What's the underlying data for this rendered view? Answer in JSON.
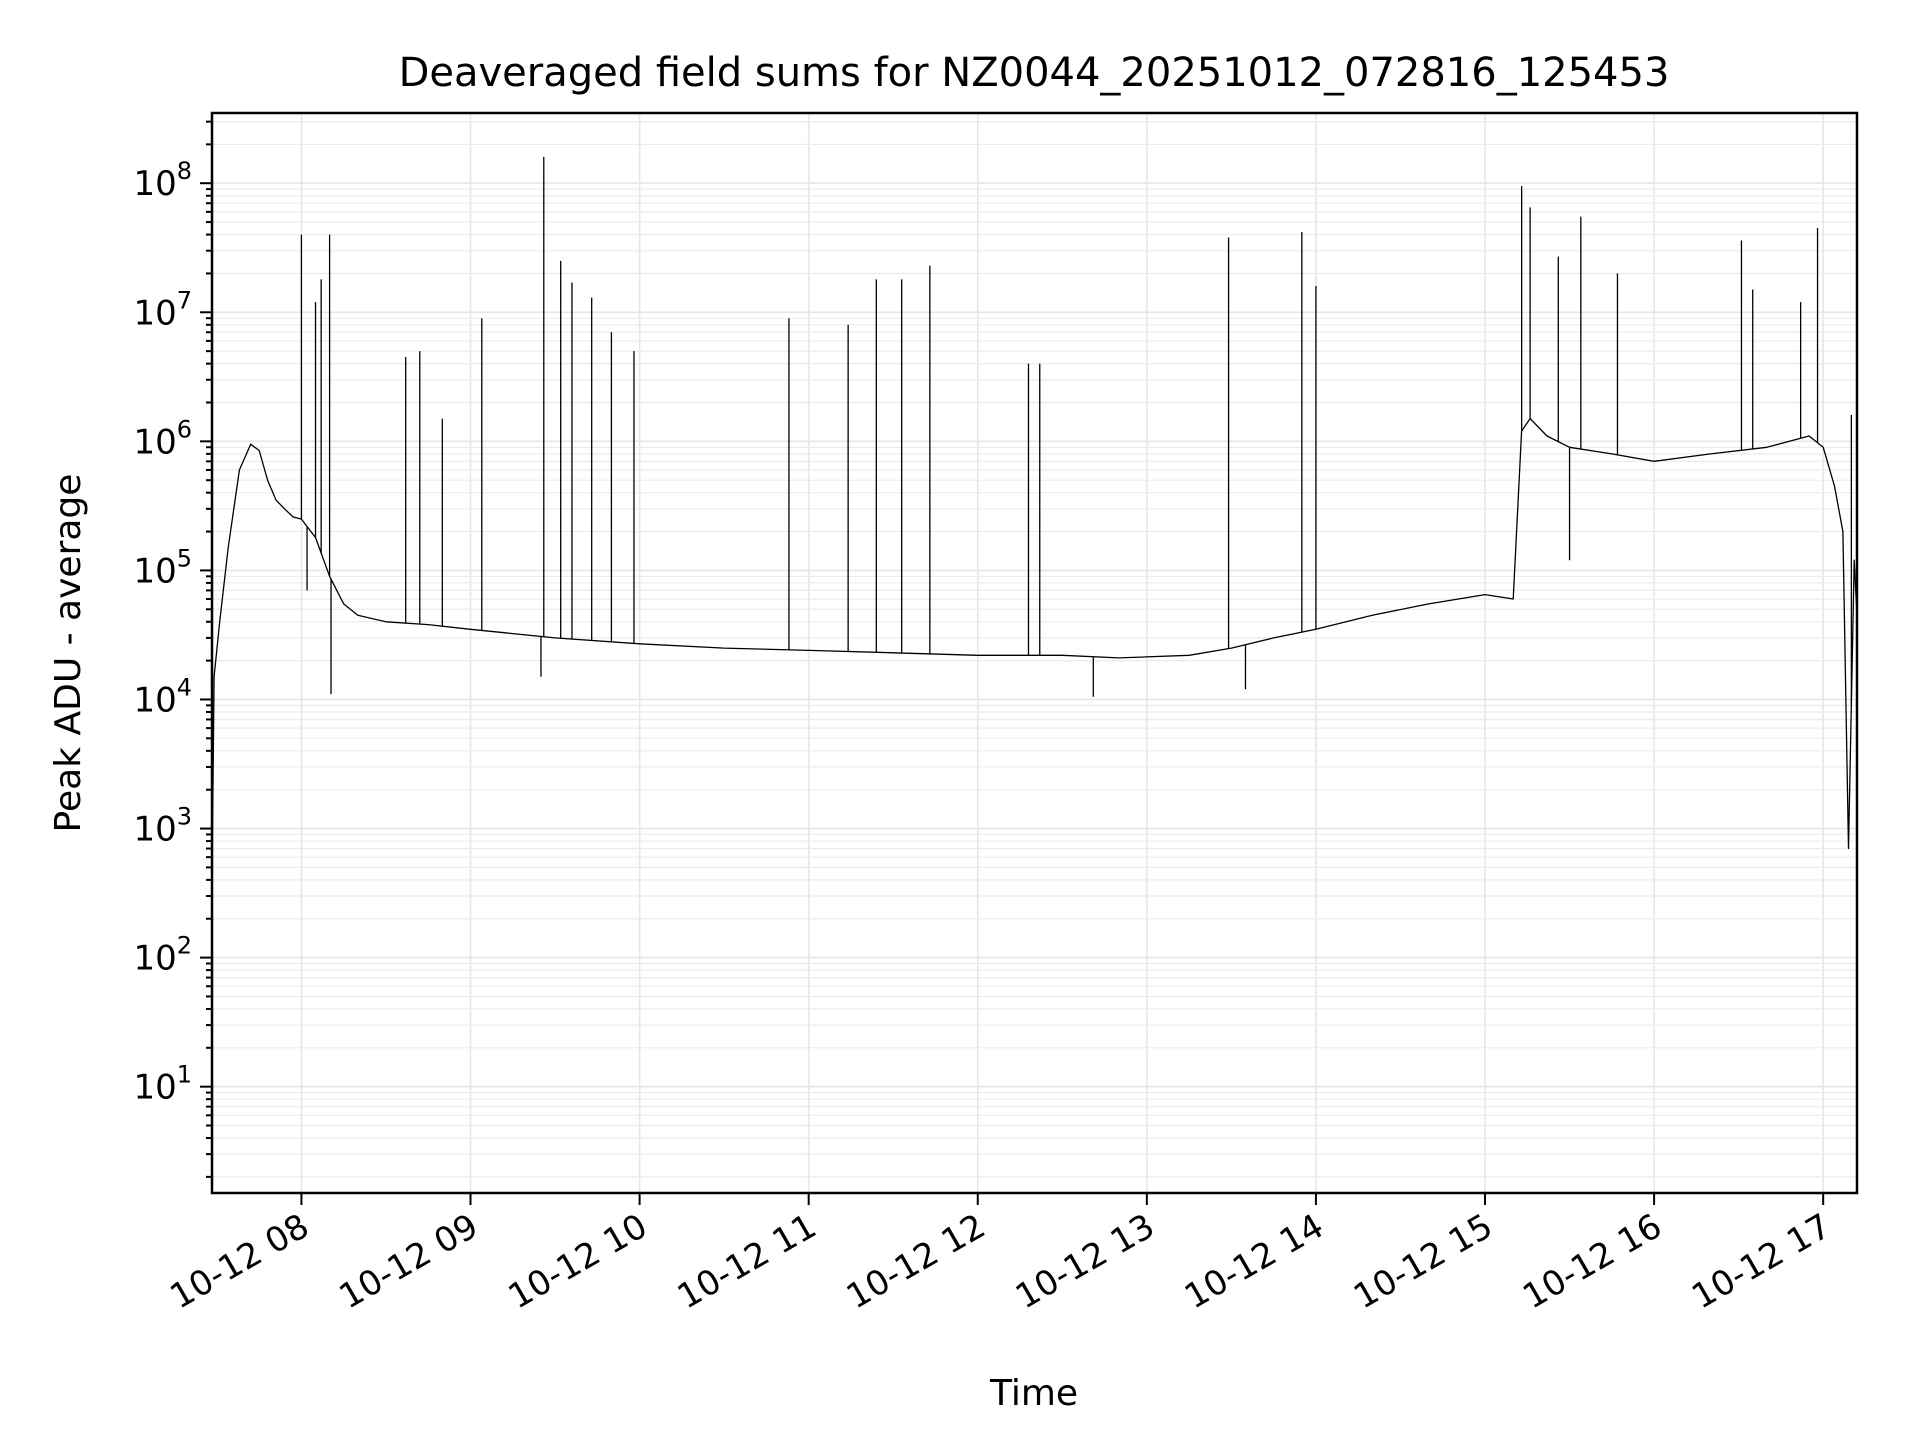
{
  "chart_data": {
    "type": "line",
    "title": "Deaveraged field sums for NZ0044_20251012_072816_125453",
    "xlabel": "Time",
    "ylabel": "Peak ADU - average",
    "yscale": "log",
    "grid": true,
    "xlim": [
      "2025-10-12 07:28:16",
      "2025-10-12 17:12:00"
    ],
    "ylim": [
      1.5,
      350000000
    ],
    "x_ticks": [
      {
        "value": "2025-10-12 08:00",
        "label": "10-12 08"
      },
      {
        "value": "2025-10-12 09:00",
        "label": "10-12 09"
      },
      {
        "value": "2025-10-12 10:00",
        "label": "10-12 10"
      },
      {
        "value": "2025-10-12 11:00",
        "label": "10-12 11"
      },
      {
        "value": "2025-10-12 12:00",
        "label": "10-12 12"
      },
      {
        "value": "2025-10-12 13:00",
        "label": "10-12 13"
      },
      {
        "value": "2025-10-12 14:00",
        "label": "10-12 14"
      },
      {
        "value": "2025-10-12 15:00",
        "label": "10-12 15"
      },
      {
        "value": "2025-10-12 16:00",
        "label": "10-12 16"
      },
      {
        "value": "2025-10-12 17:00",
        "label": "10-12 17"
      }
    ],
    "y_ticks": [
      {
        "value": 10,
        "base": "10",
        "exp": "1"
      },
      {
        "value": 100,
        "base": "10",
        "exp": "2"
      },
      {
        "value": 1000,
        "base": "10",
        "exp": "3"
      },
      {
        "value": 10000,
        "base": "10",
        "exp": "4"
      },
      {
        "value": 100000,
        "base": "10",
        "exp": "5"
      },
      {
        "value": 1000000,
        "base": "10",
        "exp": "6"
      },
      {
        "value": 10000000,
        "base": "10",
        "exp": "7"
      },
      {
        "value": 100000000,
        "base": "10",
        "exp": "8"
      }
    ],
    "series": [
      {
        "color": "#000000",
        "x": [
          "2025-10-12 07:28:16",
          "2025-10-12 07:29:00",
          "2025-10-12 07:31:00",
          "2025-10-12 07:34:00",
          "2025-10-12 07:38:00",
          "2025-10-12 07:42:00",
          "2025-10-12 07:45:00",
          "2025-10-12 07:48:00",
          "2025-10-12 07:51:00",
          "2025-10-12 07:54:00",
          "2025-10-12 07:57:00",
          "2025-10-12 08:00:00",
          "2025-10-12 08:05:00",
          "2025-10-12 08:10:00",
          "2025-10-12 08:15:00",
          "2025-10-12 08:20:00",
          "2025-10-12 08:30:00",
          "2025-10-12 08:45:00",
          "2025-10-12 09:00:00",
          "2025-10-12 09:30:00",
          "2025-10-12 10:00:00",
          "2025-10-12 10:30:00",
          "2025-10-12 11:00:00",
          "2025-10-12 11:30:00",
          "2025-10-12 12:00:00",
          "2025-10-12 12:30:00",
          "2025-10-12 12:50:00",
          "2025-10-12 13:15:00",
          "2025-10-12 13:30:00",
          "2025-10-12 13:45:00",
          "2025-10-12 14:00:00",
          "2025-10-12 14:20:00",
          "2025-10-12 14:40:00",
          "2025-10-12 15:00:00",
          "2025-10-12 15:10:00",
          "2025-10-12 15:13:00",
          "2025-10-12 15:16:00",
          "2025-10-12 15:22:00",
          "2025-10-12 15:30:00",
          "2025-10-12 15:45:00",
          "2025-10-12 16:00:00",
          "2025-10-12 16:20:00",
          "2025-10-12 16:40:00",
          "2025-10-12 16:55:00",
          "2025-10-12 17:00:00",
          "2025-10-12 17:04:00",
          "2025-10-12 17:07:00",
          "2025-10-12 17:09:00",
          "2025-10-12 17:11:00",
          "2025-10-12 17:12:00"
        ],
        "y": [
          400,
          15000,
          40000,
          150000,
          600000,
          950000,
          850000,
          500000,
          350000,
          300000,
          260000,
          250000,
          180000,
          90000,
          55000,
          45000,
          40000,
          38000,
          35000,
          30000,
          27000,
          25000,
          24000,
          23000,
          22000,
          22000,
          21000,
          22000,
          25000,
          30000,
          35000,
          45000,
          55000,
          65000,
          60000,
          1200000,
          1500000,
          1100000,
          900000,
          800000,
          700000,
          800000,
          900000,
          1100000,
          900000,
          450000,
          200000,
          700,
          120000,
          45000
        ]
      }
    ],
    "spikes": [
      {
        "x": "2025-10-12 08:00:00",
        "y": 40000000
      },
      {
        "x": "2025-10-12 08:02:00",
        "y": 70000
      },
      {
        "x": "2025-10-12 08:05:00",
        "y": 12000000
      },
      {
        "x": "2025-10-12 08:07:00",
        "y": 18000000
      },
      {
        "x": "2025-10-12 08:10:00",
        "y": 40000000
      },
      {
        "x": "2025-10-12 08:10:30",
        "y": 11000
      },
      {
        "x": "2025-10-12 08:37:00",
        "y": 4500000
      },
      {
        "x": "2025-10-12 08:42:00",
        "y": 5000000
      },
      {
        "x": "2025-10-12 08:50:00",
        "y": 1500000
      },
      {
        "x": "2025-10-12 09:04:00",
        "y": 9000000
      },
      {
        "x": "2025-10-12 09:25:00",
        "y": 15000
      },
      {
        "x": "2025-10-12 09:26:00",
        "y": 160000000
      },
      {
        "x": "2025-10-12 09:32:00",
        "y": 25000000
      },
      {
        "x": "2025-10-12 09:36:00",
        "y": 17000000
      },
      {
        "x": "2025-10-12 09:43:00",
        "y": 13000000
      },
      {
        "x": "2025-10-12 09:50:00",
        "y": 7000000
      },
      {
        "x": "2025-10-12 09:58:00",
        "y": 5000000
      },
      {
        "x": "2025-10-12 10:53:00",
        "y": 9000000
      },
      {
        "x": "2025-10-12 11:14:00",
        "y": 8000000
      },
      {
        "x": "2025-10-12 11:24:00",
        "y": 18000000
      },
      {
        "x": "2025-10-12 11:33:00",
        "y": 18000000
      },
      {
        "x": "2025-10-12 11:43:00",
        "y": 23000000
      },
      {
        "x": "2025-10-12 12:18:00",
        "y": 4000000
      },
      {
        "x": "2025-10-12 12:22:00",
        "y": 4000000
      },
      {
        "x": "2025-10-12 12:41:00",
        "y": 10500
      },
      {
        "x": "2025-10-12 13:29:00",
        "y": 38000000
      },
      {
        "x": "2025-10-12 13:35:00",
        "y": 12000
      },
      {
        "x": "2025-10-12 13:55:00",
        "y": 42000000
      },
      {
        "x": "2025-10-12 14:00:00",
        "y": 16000000
      },
      {
        "x": "2025-10-12 15:13:00",
        "y": 95000000
      },
      {
        "x": "2025-10-12 15:16:00",
        "y": 65000000
      },
      {
        "x": "2025-10-12 15:26:00",
        "y": 27000000
      },
      {
        "x": "2025-10-12 15:30:00",
        "y": 120000
      },
      {
        "x": "2025-10-12 15:34:00",
        "y": 55000000
      },
      {
        "x": "2025-10-12 15:47:00",
        "y": 20000000
      },
      {
        "x": "2025-10-12 16:31:00",
        "y": 36000000
      },
      {
        "x": "2025-10-12 16:35:00",
        "y": 15000000
      },
      {
        "x": "2025-10-12 16:52:00",
        "y": 12000000
      },
      {
        "x": "2025-10-12 16:58:00",
        "y": 45000000
      },
      {
        "x": "2025-10-12 17:10:00",
        "y": 1600000
      }
    ]
  }
}
